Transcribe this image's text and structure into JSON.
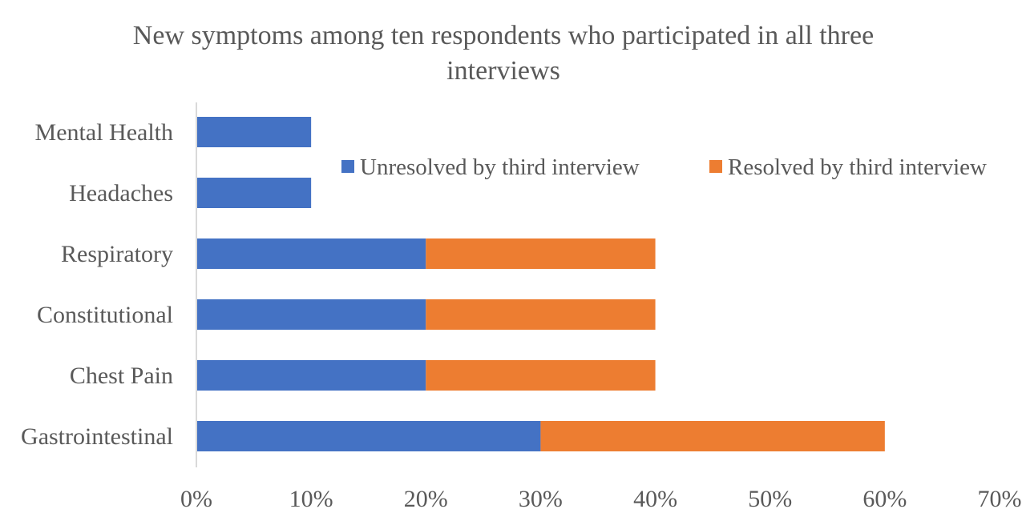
{
  "chart_data": {
    "type": "bar",
    "orientation": "horizontal",
    "stacked": true,
    "title_lines": [
      "New symptoms among ten respondents who participated in all three",
      "interviews"
    ],
    "categories": [
      "Mental Health",
      "Headaches",
      "Respiratory",
      "Constitutional",
      "Chest Pain",
      "Gastrointestinal"
    ],
    "series": [
      {
        "name": "Unresolved by third interview",
        "color": "#4472C4",
        "values": [
          0.1,
          0.1,
          0.2,
          0.2,
          0.2,
          0.3
        ]
      },
      {
        "name": "Resolved by third interview",
        "color": "#ED7D31",
        "values": [
          0,
          0,
          0.2,
          0.2,
          0.2,
          0.3
        ]
      }
    ],
    "xlim": [
      0,
      0.7
    ],
    "x_ticks": [
      0,
      0.1,
      0.2,
      0.3,
      0.4,
      0.5,
      0.6,
      0.7
    ],
    "x_tick_labels": [
      "0%",
      "10%",
      "20%",
      "30%",
      "40%",
      "50%",
      "60%",
      "70%"
    ],
    "grid": false,
    "legend_position": "top-right"
  }
}
